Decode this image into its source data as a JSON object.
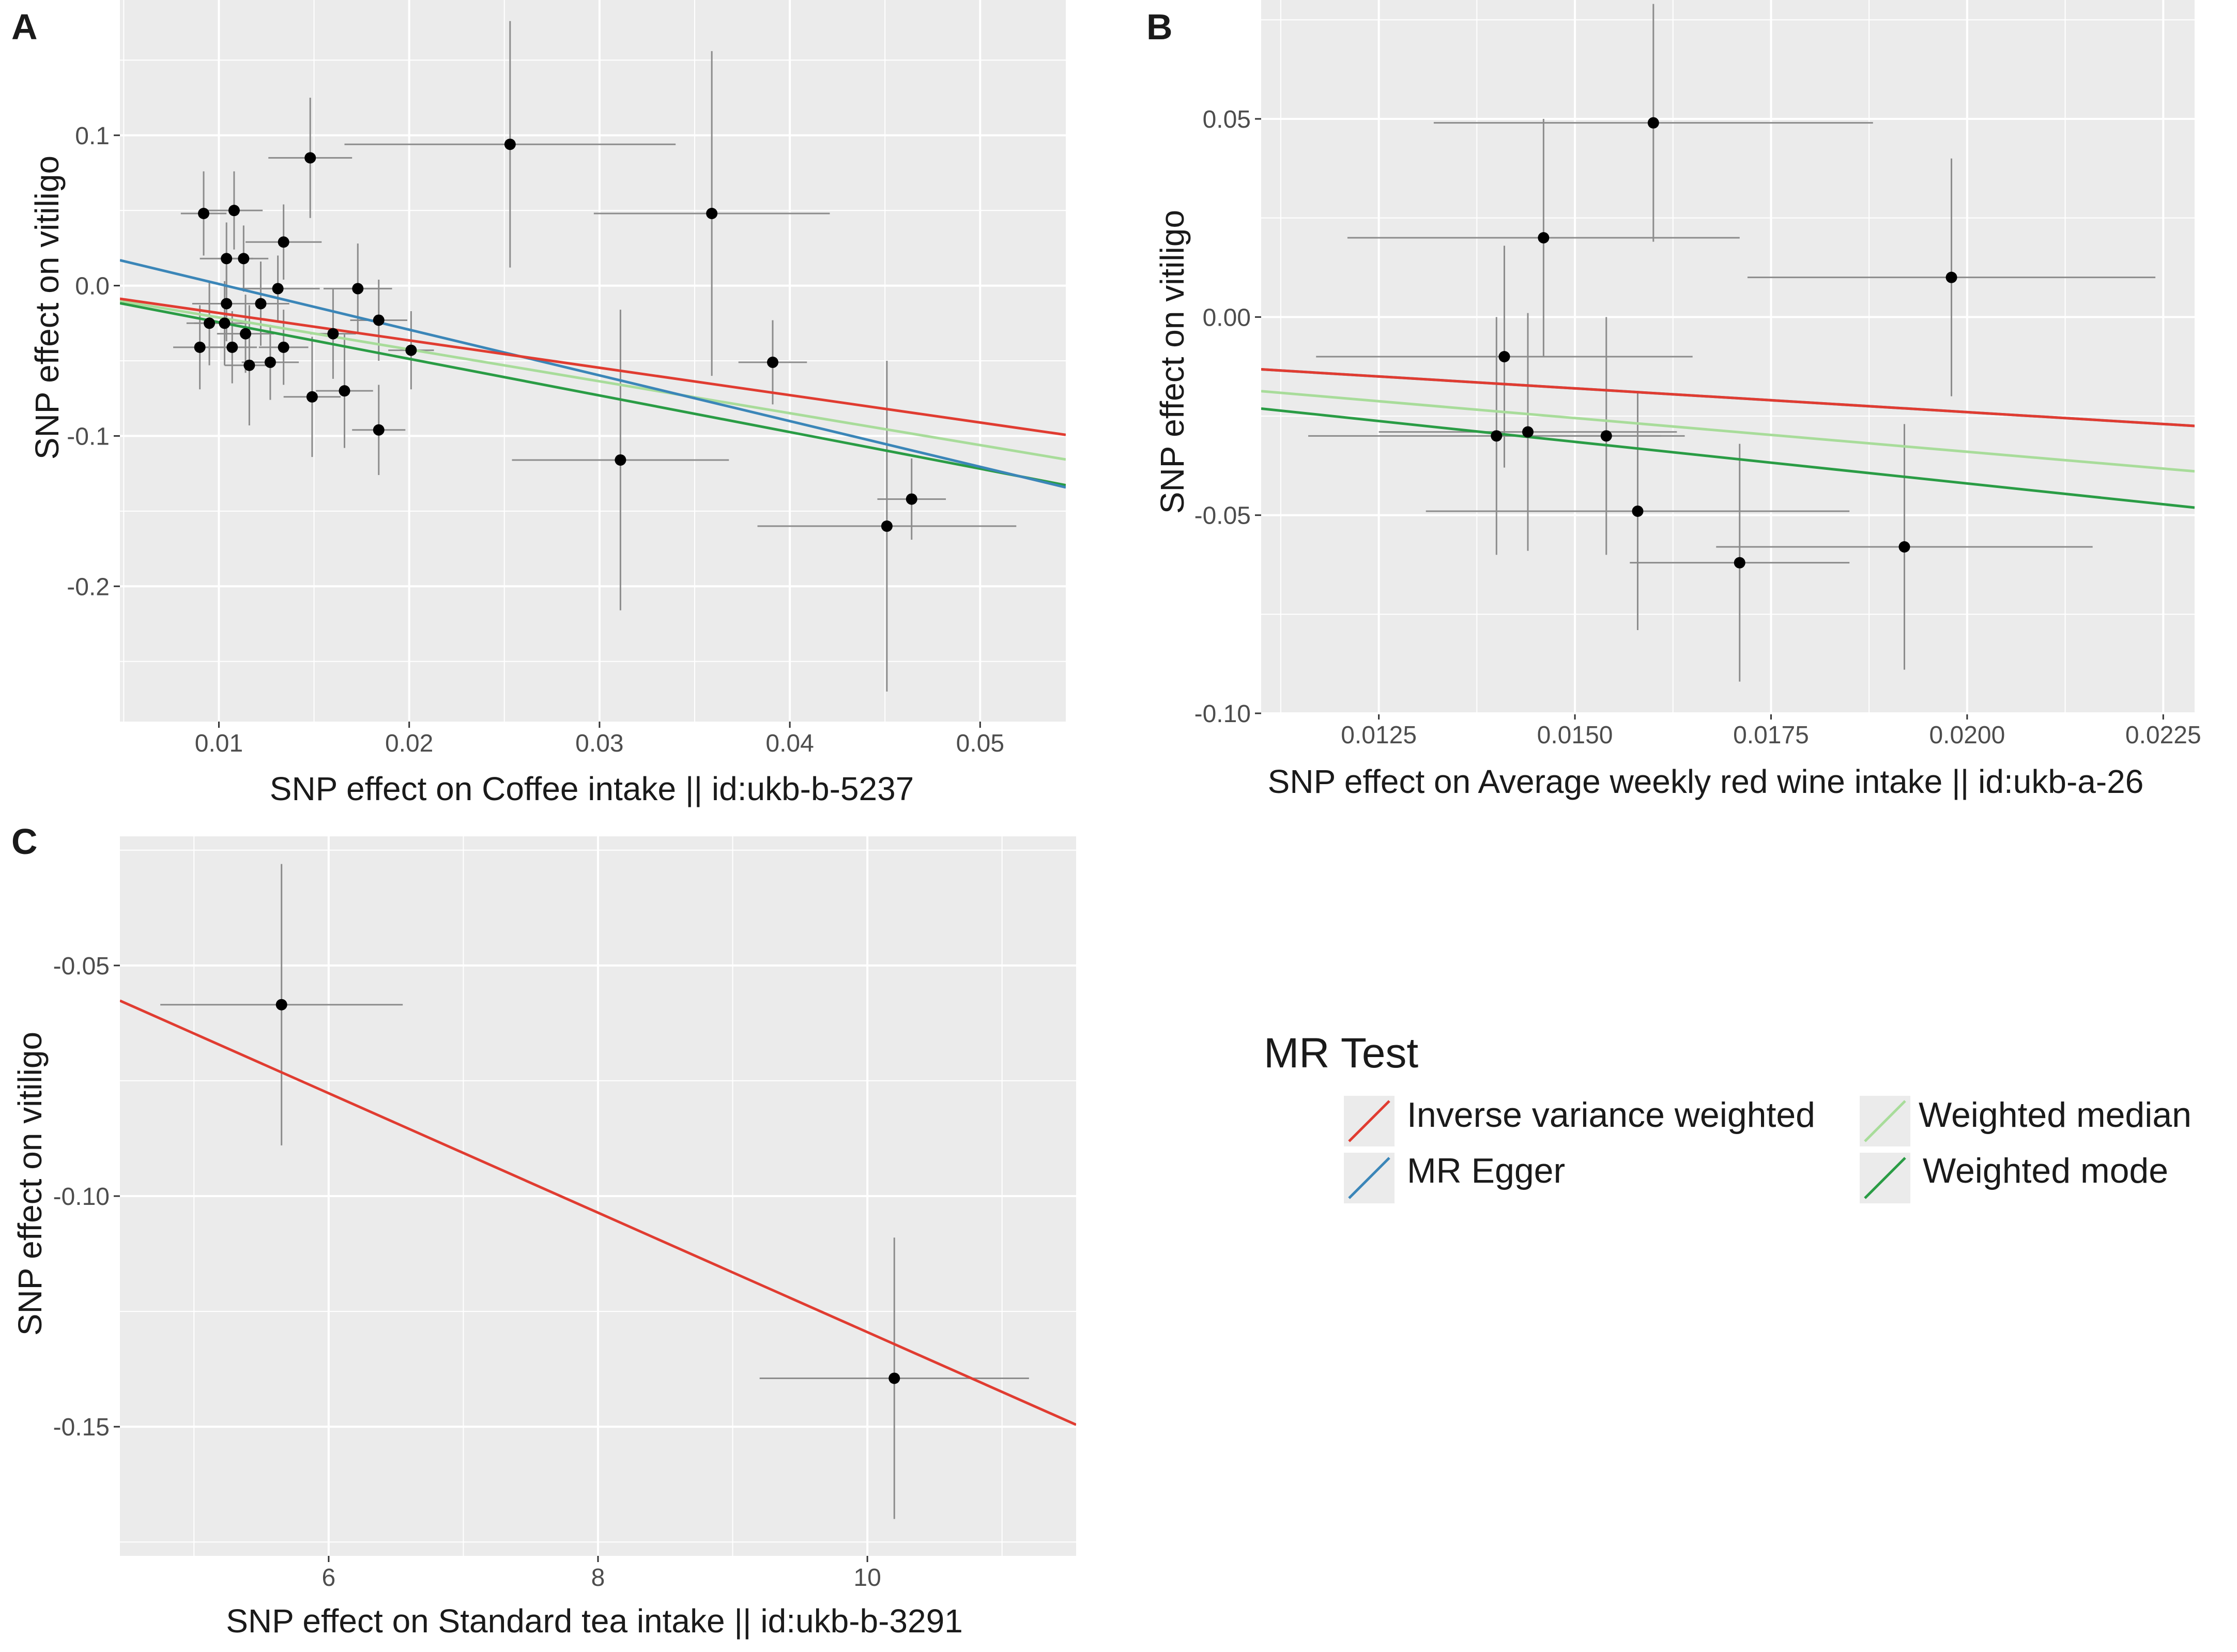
{
  "figure": {
    "colors": {
      "panel_bg": "#ebebeb",
      "grid": "#ffffff",
      "text": "#1a1a1a",
      "tick_text": "#4d4d4d",
      "point": "#000000",
      "errorbar": "#8c8c8c"
    }
  },
  "legend": {
    "title": "MR Test",
    "position": "right-middle",
    "entries": [
      {
        "label": "Inverse variance weighted",
        "color": "#e03c31"
      },
      {
        "label": "MR Egger",
        "color": "#3b86b8"
      },
      {
        "label": "Weighted median",
        "color": "#a8dc9a"
      },
      {
        "label": "Weighted mode",
        "color": "#2a9c45"
      }
    ]
  },
  "chart_data": [
    {
      "panel": "A",
      "type": "scatter",
      "title": "",
      "xlabel": "SNP effect on Coffee intake || id:ukb-b-5237",
      "ylabel": "SNP effect on vitiligo",
      "xlim": [
        0.0048,
        0.0545
      ],
      "ylim": [
        -0.29,
        0.19
      ],
      "xticks": [
        0.01,
        0.02,
        0.03,
        0.04,
        0.05
      ],
      "xtick_labels": [
        "0.01",
        "0.02",
        "0.03",
        "0.04",
        "0.05"
      ],
      "yticks": [
        -0.2,
        -0.1,
        0.0,
        0.1
      ],
      "ytick_labels": [
        "-0.2",
        "-0.1",
        "0.0",
        "0.1"
      ],
      "points": [
        {
          "x": 0.0253,
          "y": 0.094,
          "xerr": 0.0087,
          "yerr": 0.082
        },
        {
          "x": 0.0148,
          "y": 0.085,
          "xerr": 0.0022,
          "yerr": 0.04
        },
        {
          "x": 0.0359,
          "y": 0.048,
          "xerr": 0.0062,
          "yerr": 0.108
        },
        {
          "x": 0.0092,
          "y": 0.048,
          "xerr": 0.0012,
          "yerr": 0.028
        },
        {
          "x": 0.0108,
          "y": 0.05,
          "xerr": 0.0015,
          "yerr": 0.026
        },
        {
          "x": 0.0134,
          "y": 0.029,
          "xerr": 0.002,
          "yerr": 0.025
        },
        {
          "x": 0.0104,
          "y": 0.018,
          "xerr": 0.0014,
          "yerr": 0.024
        },
        {
          "x": 0.0113,
          "y": 0.018,
          "xerr": 0.0013,
          "yerr": 0.022
        },
        {
          "x": 0.0131,
          "y": -0.002,
          "xerr": 0.0022,
          "yerr": 0.022
        },
        {
          "x": 0.0173,
          "y": -0.002,
          "xerr": 0.0018,
          "yerr": 0.03
        },
        {
          "x": 0.0104,
          "y": -0.012,
          "xerr": 0.0018,
          "yerr": 0.025
        },
        {
          "x": 0.0122,
          "y": -0.012,
          "xerr": 0.0015,
          "yerr": 0.028
        },
        {
          "x": 0.0095,
          "y": -0.025,
          "xerr": 0.0012,
          "yerr": 0.028
        },
        {
          "x": 0.0103,
          "y": -0.025,
          "xerr": 0.0016,
          "yerr": 0.028
        },
        {
          "x": 0.0184,
          "y": -0.023,
          "xerr": 0.0015,
          "yerr": 0.027
        },
        {
          "x": 0.0114,
          "y": -0.032,
          "xerr": 0.0015,
          "yerr": 0.026
        },
        {
          "x": 0.016,
          "y": -0.032,
          "xerr": 0.0012,
          "yerr": 0.03
        },
        {
          "x": 0.0201,
          "y": -0.043,
          "xerr": 0.0012,
          "yerr": 0.026
        },
        {
          "x": 0.009,
          "y": -0.041,
          "xerr": 0.0014,
          "yerr": 0.028
        },
        {
          "x": 0.0107,
          "y": -0.041,
          "xerr": 0.0013,
          "yerr": 0.024
        },
        {
          "x": 0.0134,
          "y": -0.041,
          "xerr": 0.0013,
          "yerr": 0.025
        },
        {
          "x": 0.0116,
          "y": -0.053,
          "xerr": 0.0013,
          "yerr": 0.04
        },
        {
          "x": 0.0127,
          "y": -0.051,
          "xerr": 0.0015,
          "yerr": 0.025
        },
        {
          "x": 0.0166,
          "y": -0.07,
          "xerr": 0.0015,
          "yerr": 0.038
        },
        {
          "x": 0.0149,
          "y": -0.074,
          "xerr": 0.0015,
          "yerr": 0.04
        },
        {
          "x": 0.0184,
          "y": -0.096,
          "xerr": 0.0014,
          "yerr": 0.03
        },
        {
          "x": 0.0391,
          "y": -0.051,
          "xerr": 0.0018,
          "yerr": 0.028
        },
        {
          "x": 0.0311,
          "y": -0.116,
          "xerr": 0.0057,
          "yerr": 0.1
        },
        {
          "x": 0.0464,
          "y": -0.142,
          "xerr": 0.0018,
          "yerr": 0.027
        },
        {
          "x": 0.0451,
          "y": -0.16,
          "xerr": 0.0068,
          "yerr": 0.11
        }
      ],
      "lines": [
        {
          "method": "Inverse variance weighted",
          "intercept": 0.0,
          "slope": -1.8213
        },
        {
          "method": "MR Egger",
          "intercept": 0.0315,
          "slope": -3.0405
        },
        {
          "method": "Weighted median",
          "intercept": 0.0,
          "slope": -2.1217
        },
        {
          "method": "Weighted mode",
          "intercept": 0.0,
          "slope": -2.4356
        }
      ]
    },
    {
      "panel": "B",
      "type": "scatter",
      "title": "",
      "xlabel": "SNP effect on Average weekly red wine intake || id:ukb-a-26",
      "ylabel": "SNP effect on vitiligo",
      "xlim": [
        0.011,
        0.0229
      ],
      "ylim": [
        -0.1,
        0.08
      ],
      "xticks": [
        0.0125,
        0.015,
        0.0175,
        0.02,
        0.0225
      ],
      "xtick_labels": [
        "0.0125",
        "0.0150",
        "0.0175",
        "0.0200",
        "0.0225"
      ],
      "yticks": [
        -0.1,
        -0.05,
        0.0,
        0.05
      ],
      "ytick_labels": [
        "-0.10",
        "-0.05",
        "0.00",
        "0.05"
      ],
      "points": [
        {
          "x": 0.016,
          "y": 0.049,
          "xerr": 0.0028,
          "yerr": 0.03
        },
        {
          "x": 0.0146,
          "y": 0.02,
          "xerr": 0.0025,
          "yerr": 0.03
        },
        {
          "x": 0.0198,
          "y": 0.01,
          "xerr": 0.0026,
          "yerr": 0.03
        },
        {
          "x": 0.0141,
          "y": -0.01,
          "xerr": 0.0024,
          "yerr": 0.028
        },
        {
          "x": 0.014,
          "y": -0.03,
          "xerr": 0.0024,
          "yerr": 0.03
        },
        {
          "x": 0.0144,
          "y": -0.029,
          "xerr": 0.0019,
          "yerr": 0.03
        },
        {
          "x": 0.0154,
          "y": -0.03,
          "xerr": 0.0007,
          "yerr": 0.03
        },
        {
          "x": 0.0158,
          "y": -0.049,
          "xerr": 0.0027,
          "yerr": 0.03
        },
        {
          "x": 0.0171,
          "y": -0.062,
          "xerr": 0.0014,
          "yerr": 0.03
        },
        {
          "x": 0.0192,
          "y": -0.058,
          "xerr": 0.0024,
          "yerr": 0.031
        }
      ],
      "lines": [
        {
          "method": "Inverse variance weighted",
          "intercept": 0.0,
          "slope": -1.2
        },
        {
          "method": "MR Egger",
          "intercept": 0.0,
          "slope": -1.2
        },
        {
          "method": "Weighted median",
          "intercept": 0.0,
          "slope": -1.7
        },
        {
          "method": "Weighted mode",
          "intercept": 0.0,
          "slope": -2.1
        }
      ]
    },
    {
      "panel": "C",
      "type": "scatter",
      "title": "",
      "xlabel": "SNP effect on Standard tea intake || id:ukb-b-3291",
      "ylabel": "SNP effect on vitiligo",
      "xlim": [
        4.45,
        11.55
      ],
      "ylim": [
        -0.178,
        -0.022
      ],
      "xticks": [
        6,
        8,
        10
      ],
      "xtick_labels": [
        "6",
        "8",
        "10"
      ],
      "yticks": [
        -0.15,
        -0.1,
        -0.05
      ],
      "ytick_labels": [
        "-0.15",
        "-0.10",
        "-0.05"
      ],
      "points": [
        {
          "x": 5.65,
          "y": -0.0585,
          "xerr": 0.9,
          "yerr": 0.0305
        },
        {
          "x": 10.2,
          "y": -0.1395,
          "xerr": 1.0,
          "yerr": 0.0305
        }
      ],
      "lines": [
        {
          "method": "Inverse variance weighted",
          "intercept": 0.0,
          "slope": -0.01295
        }
      ]
    }
  ],
  "panel_labels": [
    "A",
    "B",
    "C"
  ]
}
